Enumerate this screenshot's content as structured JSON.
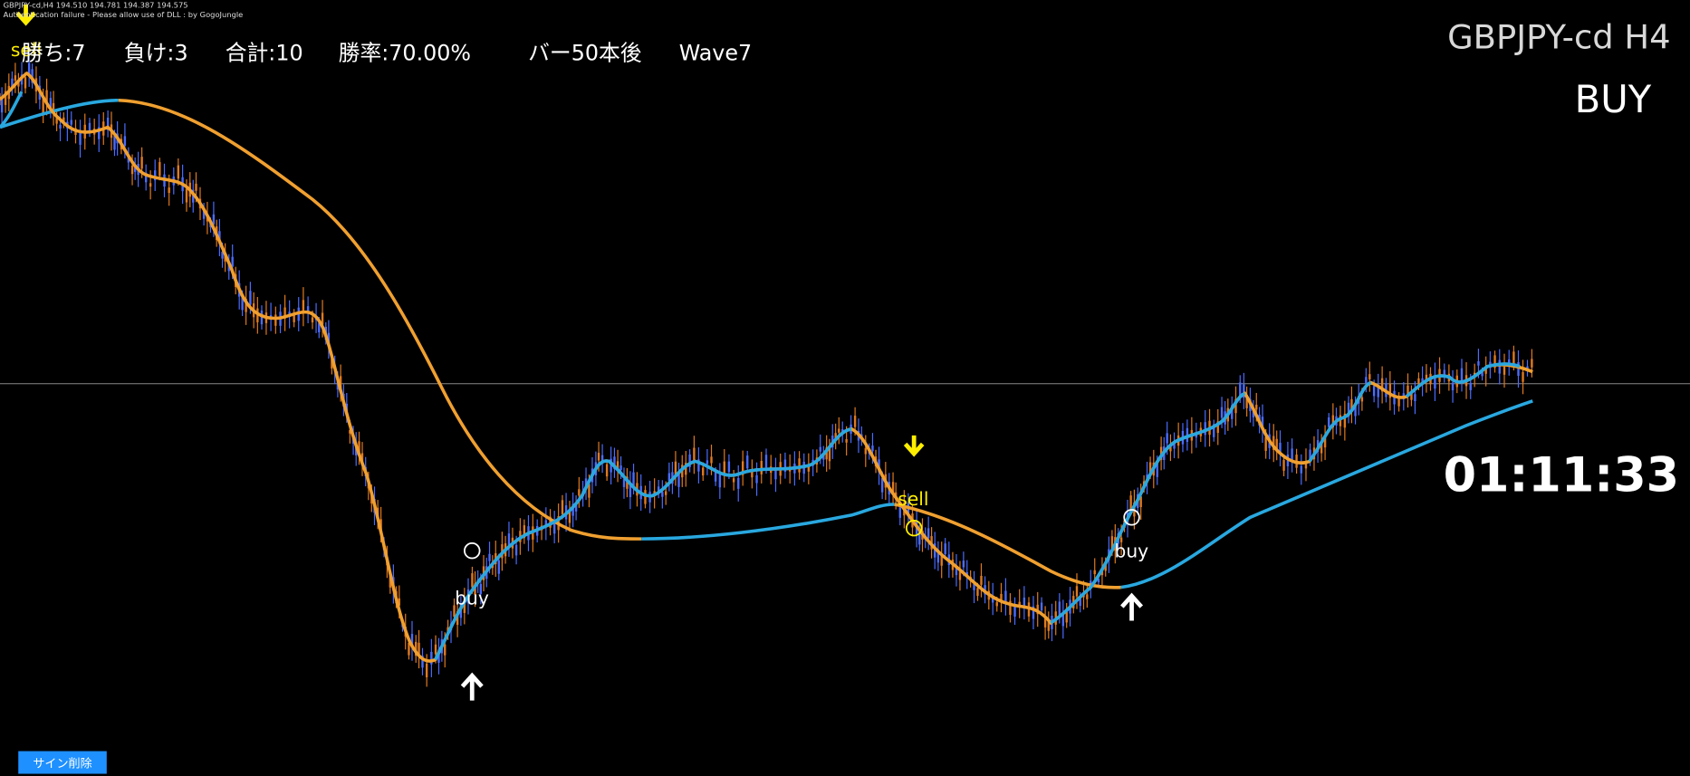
{
  "header": {
    "symbol_info": "GBPJPY-cd,H4  194.510 194.781 194.387 194.575",
    "notice": "Authentication failure - Please allow use of DLL : by GogoJungle"
  },
  "stats": [
    "勝ち:7",
    "負け:3",
    "合計:10",
    "勝率:70.00%",
    "バー50本後",
    "Wave7"
  ],
  "symbol_label": "GBPJPY-cd H4",
  "signal": "BUY",
  "timer": "01:11:33",
  "signals": [
    {
      "label": "sell"
    },
    {
      "label": "buy"
    },
    {
      "label": "sell"
    },
    {
      "label": "buy"
    }
  ],
  "button": "サイン削除"
}
